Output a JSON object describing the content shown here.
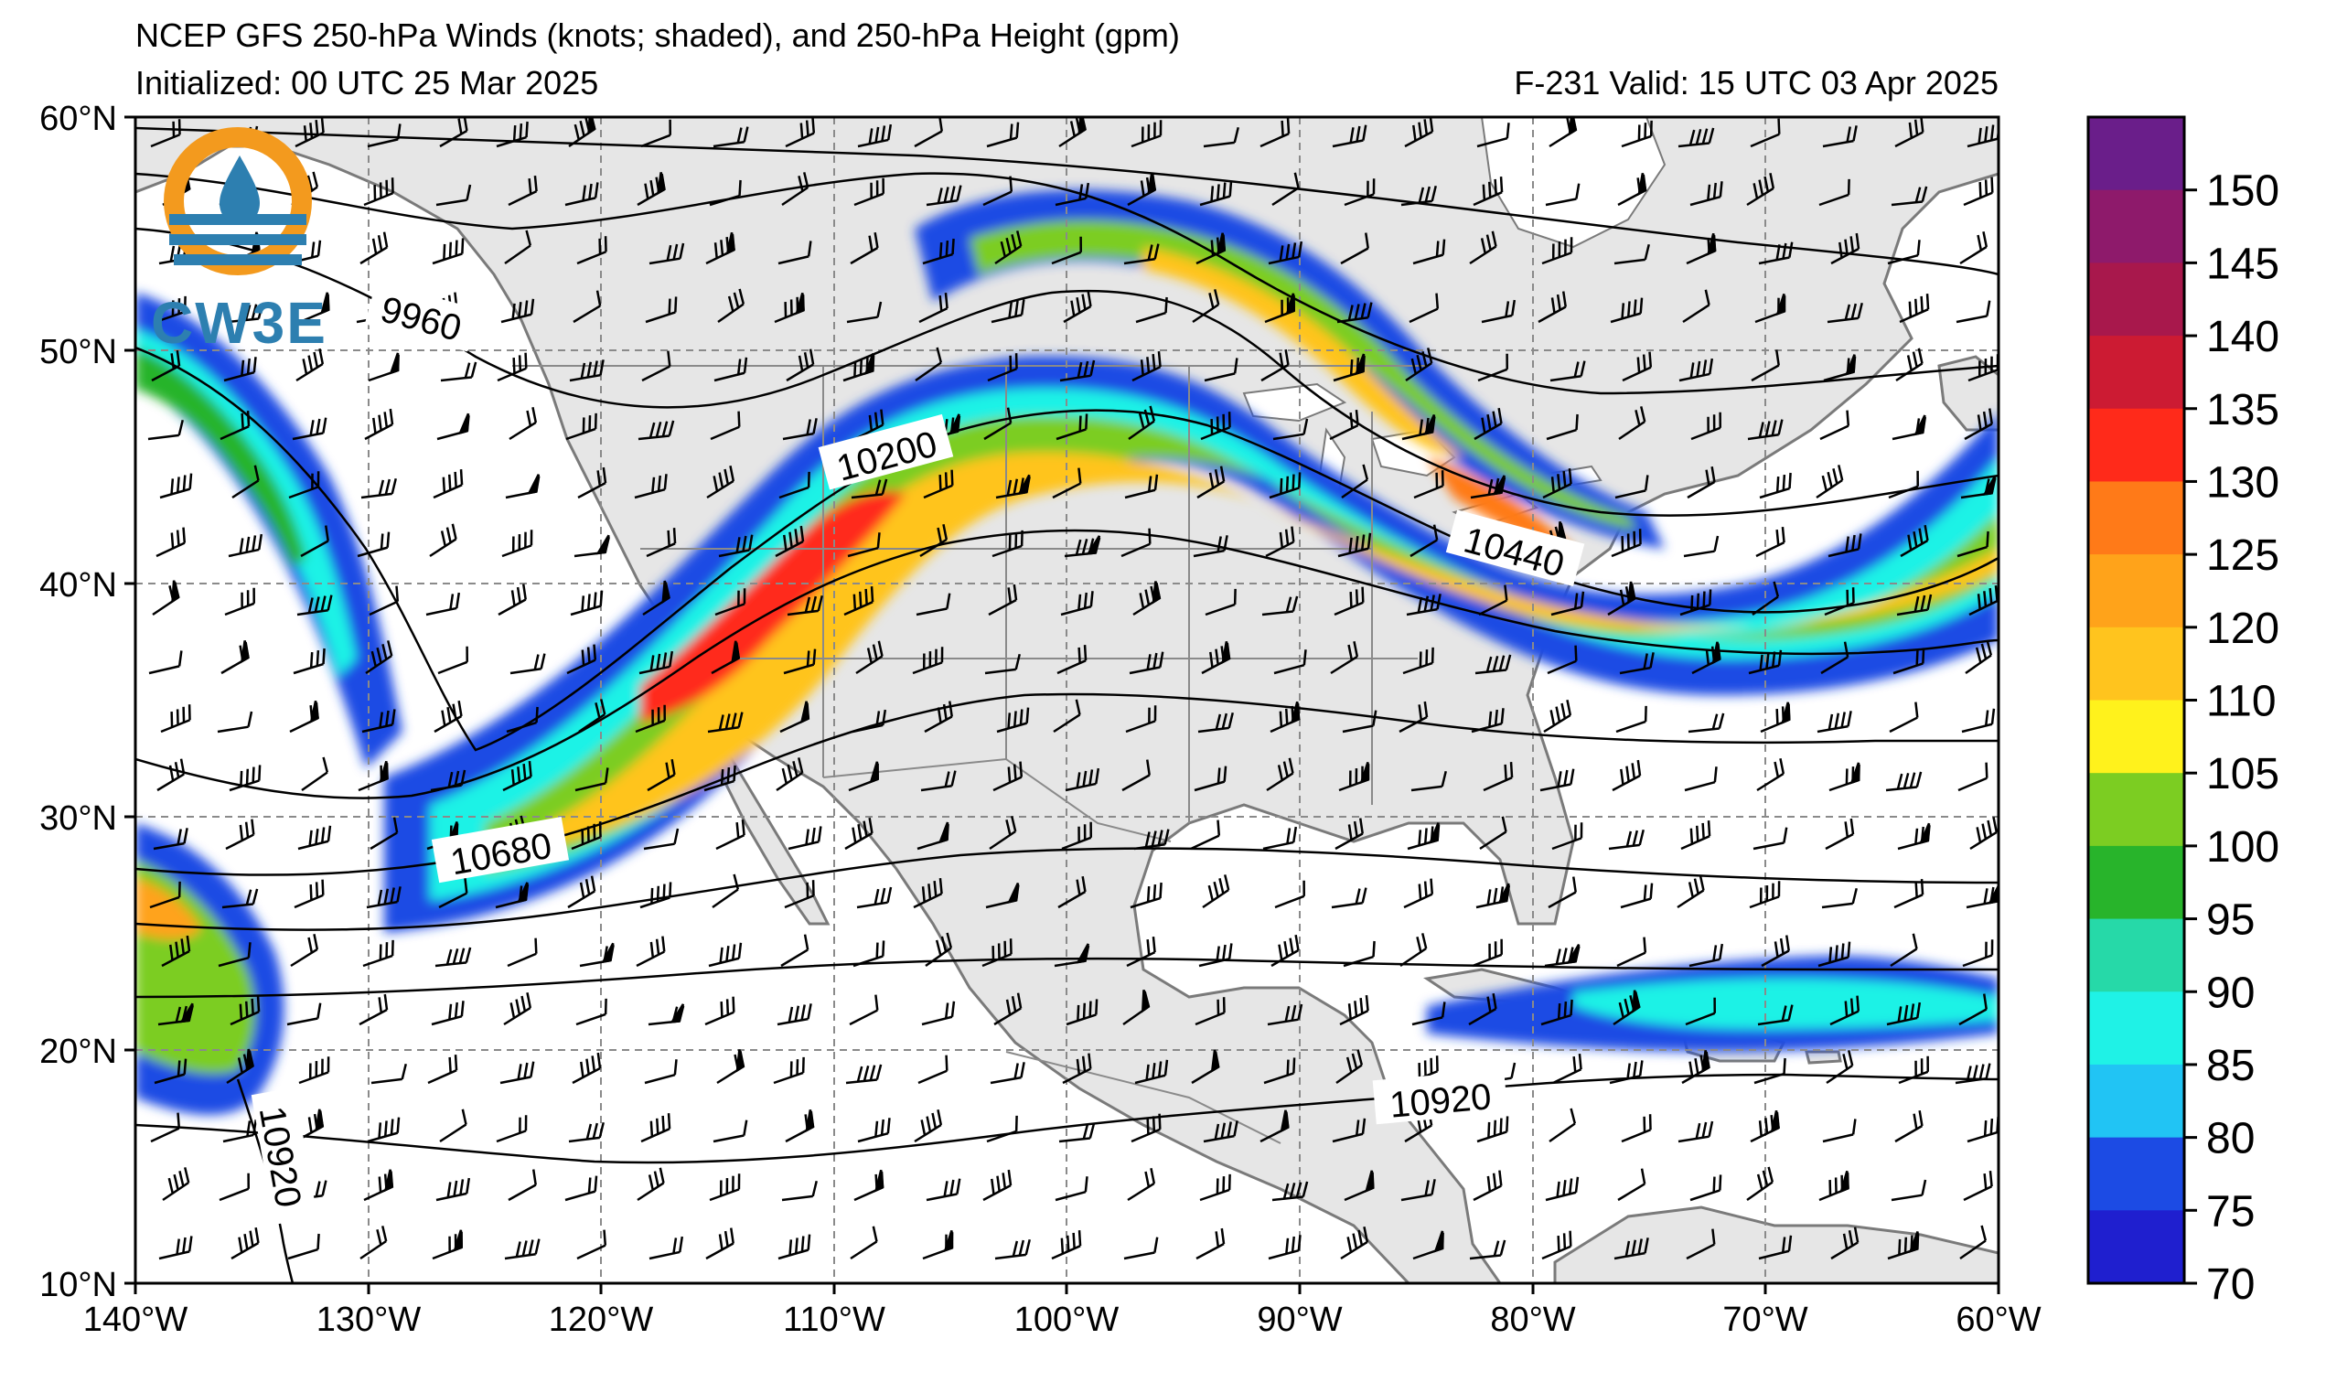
{
  "header": {
    "title": "NCEP GFS 250-hPa Winds (knots; shaded), and 250-hPa Height (gpm)",
    "initialized": "Initialized: 00 UTC 25 Mar 2025",
    "valid": "F-231  Valid: 15 UTC 03 Apr 2025"
  },
  "logo": {
    "text": "CW3E"
  },
  "axes": {
    "lat_ticks": [
      "60°N",
      "50°N",
      "40°N",
      "30°N",
      "20°N",
      "10°N"
    ],
    "lon_ticks": [
      "140°W",
      "130°W",
      "120°W",
      "110°W",
      "100°W",
      "90°W",
      "80°W",
      "70°W",
      "60°W"
    ],
    "lat_range": [
      10,
      60
    ],
    "lon_range": [
      -140,
      -60
    ]
  },
  "colorbar": {
    "labels": [
      "150",
      "145",
      "140",
      "135",
      "130",
      "125",
      "120",
      "110",
      "105",
      "100",
      "95",
      "90",
      "85",
      "80",
      "75",
      "70"
    ],
    "colors": [
      "#6a1e8a",
      "#8e1a6b",
      "#a8184c",
      "#cc1b33",
      "#ff2a1a",
      "#ff7a18",
      "#ffa31a",
      "#ffc41e",
      "#fff21c",
      "#7ccd22",
      "#28b42b",
      "#26d9a8",
      "#1ff2e6",
      "#21c4f4",
      "#1c4be4",
      "#1f1fcf"
    ]
  },
  "contour_labels": {
    "c9960": "9960",
    "c10200": "10200",
    "c10440": "10440",
    "c10680": "10680",
    "c10920a": "10920",
    "c10920b": "10920"
  }
}
